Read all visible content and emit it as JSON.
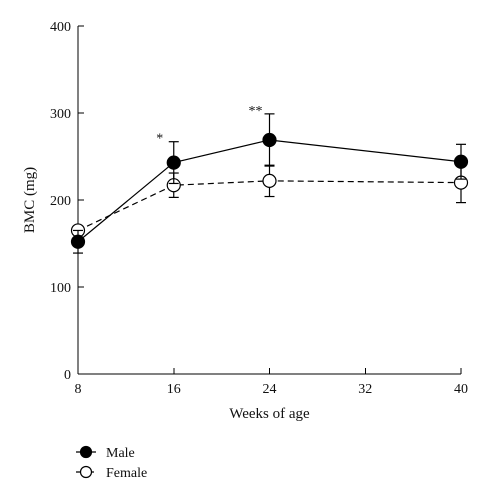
{
  "chart_data": {
    "type": "line",
    "x": [
      8,
      16,
      24,
      40
    ],
    "xlabel": "Weeks of age",
    "ylabel": "BMC (mg)",
    "xlim": [
      8,
      40
    ],
    "ylim": [
      0,
      400
    ],
    "xticks": [
      8,
      16,
      24,
      32,
      40
    ],
    "yticks": [
      0,
      100,
      200,
      300,
      400
    ],
    "grid": false,
    "legend_position": "bottom-left",
    "series": [
      {
        "name": "Male",
        "values": [
          152,
          243,
          269,
          244
        ],
        "errors": [
          13,
          24,
          30,
          20
        ],
        "marker": "filled-circle",
        "line_style": "solid",
        "color": "#000000"
      },
      {
        "name": "Female",
        "values": [
          165,
          217,
          222,
          220
        ],
        "errors": [
          0,
          14,
          18,
          23
        ],
        "marker": "open-circle",
        "line_style": "dashed",
        "color": "#000000"
      }
    ],
    "annotations": [
      {
        "x": 16,
        "text": "*"
      },
      {
        "x": 24,
        "text": "**"
      }
    ]
  }
}
